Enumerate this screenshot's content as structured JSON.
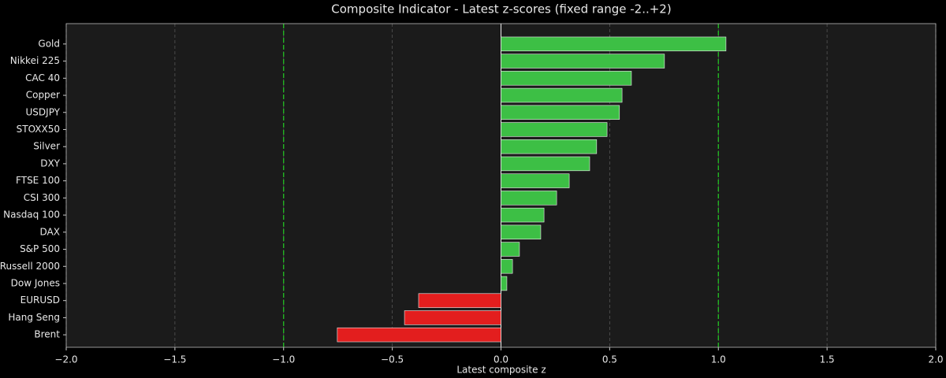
{
  "chart_data": {
    "type": "barh",
    "title": "Composite Indicator - Latest z-scores (fixed range -2..+2)",
    "x_label": "Latest composite z",
    "categories": [
      "Gold",
      "Nikkei 225",
      "CAC 40",
      "Copper",
      "USDJPY",
      "STOXX50",
      "Silver",
      "DXY",
      "FTSE 100",
      "CSI 300",
      "Nasdaq 100",
      "DAX",
      "S&P 500",
      "Russell 2000",
      "Dow Jones",
      "EURUSD",
      "Hang Seng",
      "Brent"
    ],
    "values": [
      1.035,
      0.752,
      0.6,
      0.557,
      0.545,
      0.488,
      0.44,
      0.408,
      0.314,
      0.256,
      0.198,
      0.183,
      0.085,
      0.053,
      0.027,
      -0.379,
      -0.444,
      -0.753
    ],
    "positive_color": "#3dbf45",
    "negative_color": "#e31e1e",
    "xlim": [
      -2,
      2
    ],
    "xticks": [
      {
        "value": -2,
        "label": "−2.0"
      },
      {
        "value": -1.5,
        "label": "−1.5"
      },
      {
        "value": -1,
        "label": "−1.0"
      },
      {
        "value": -0.5,
        "label": "−0.5"
      },
      {
        "value": 0,
        "label": "0.0"
      },
      0.5,
      {
        "value": 1,
        "label": "1.0"
      },
      1.5,
      {
        "value": 2,
        "label": "2.0"
      }
    ],
    "reference_lines": [
      -1,
      1
    ],
    "reference_color": "#22cc22",
    "grid": true
  }
}
